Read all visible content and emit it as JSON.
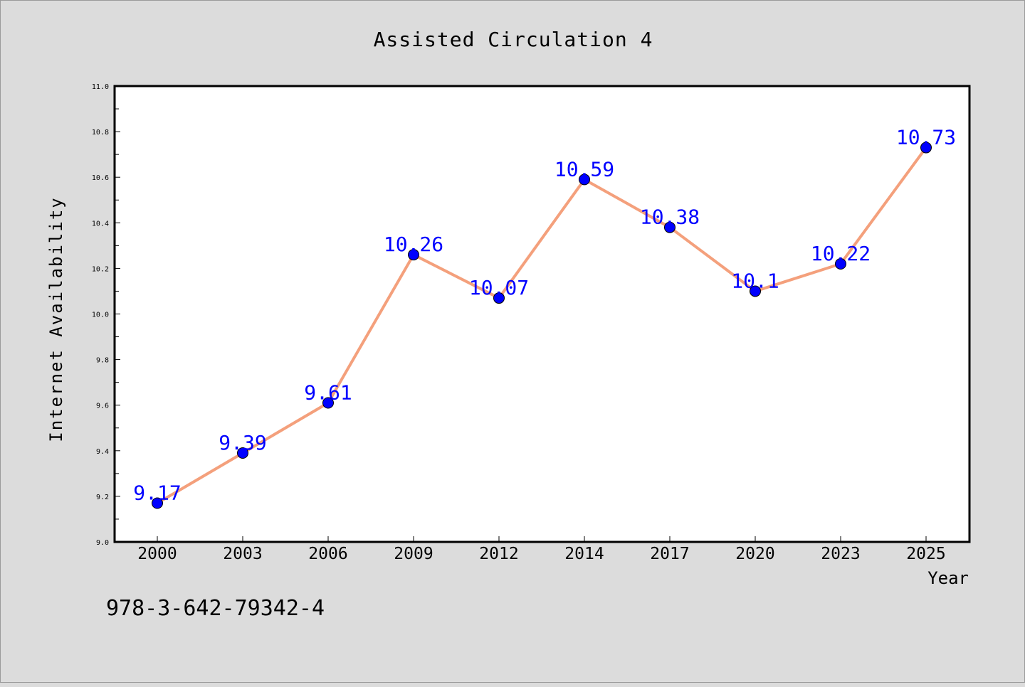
{
  "chart_data": {
    "type": "line",
    "title": "Assisted Circulation 4",
    "xlabel": "Year",
    "ylabel": "Internet Availability",
    "categories": [
      "2000",
      "2003",
      "2006",
      "2009",
      "2012",
      "2014",
      "2017",
      "2020",
      "2023",
      "2025"
    ],
    "series": [
      {
        "values": [
          9.17,
          9.39,
          9.61,
          10.26,
          10.07,
          10.59,
          10.38,
          10.1,
          10.22,
          10.73
        ],
        "data_labels": [
          "9.17",
          "9.39",
          "9.61",
          "10.26",
          "10.07",
          "10.59",
          "10.38",
          "10.1",
          "10.22",
          "10.73"
        ],
        "line_color": "#f4a07c",
        "marker_color": "#0000ff"
      }
    ],
    "ylim": [
      9.0,
      11.0
    ],
    "yticks": [
      "9.0",
      "9.2",
      "9.4",
      "9.6",
      "9.8",
      "10.0",
      "10.2",
      "10.4",
      "10.6",
      "10.8",
      "11.0"
    ],
    "grid": false,
    "legend": "none",
    "annotation": "978-3-642-79342-4",
    "colors": {
      "background": "#dcdcdc",
      "plot_background": "#ffffff",
      "label_color": "#0000ff"
    }
  }
}
